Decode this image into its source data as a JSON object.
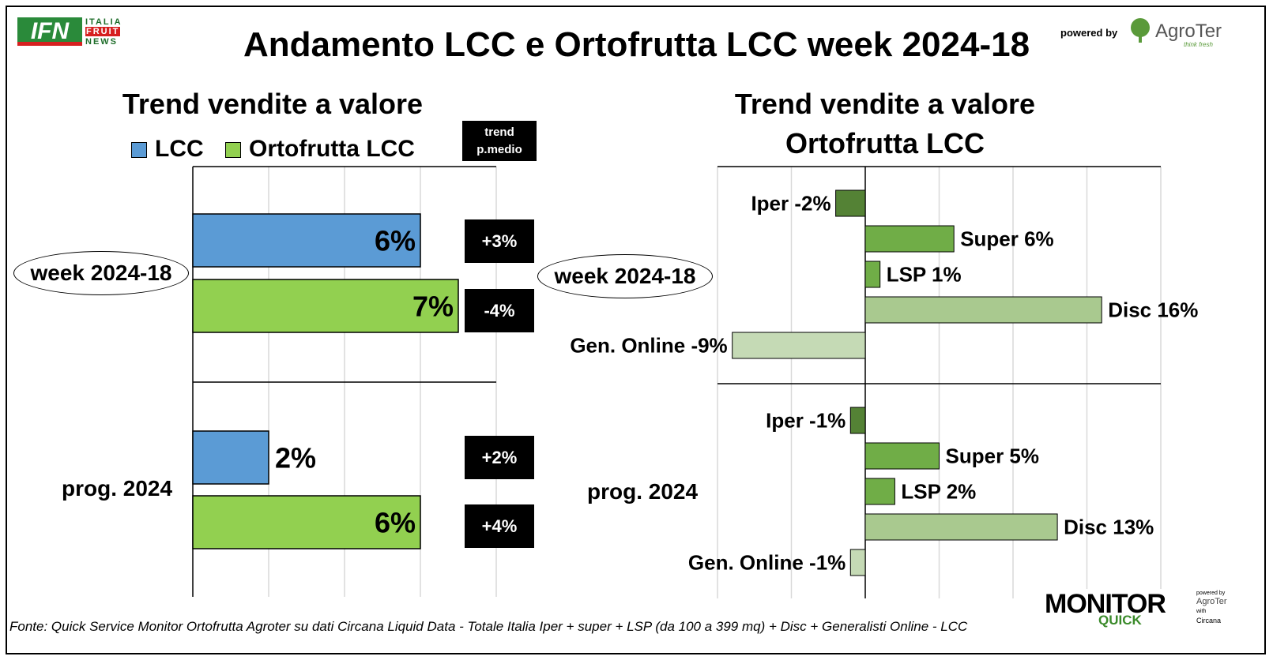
{
  "header": {
    "title": "Andamento LCC e Ortofrutta LCC week 2024-18",
    "logo_ifn": {
      "letters": "IFN",
      "line1": "ITALIA",
      "line2": "FRUIT",
      "line3": "NEWS"
    },
    "powered_by": "powered by",
    "agroter_name": "AgroTer",
    "agroter_tagline": "think fresh"
  },
  "left_chart": {
    "title": "Trend vendite a valore",
    "trend_header_line1": "trend",
    "trend_header_line2": "p.medio"
  },
  "right_chart": {
    "title_line1": "Trend vendite a valore",
    "title_line2": "Ortofrutta LCC"
  },
  "footer": "Fonte: Quick Service Monitor Ortofrutta Agroter su dati Circana Liquid Data - Totale Italia Iper + super + LSP (da 100 a 399 mq) + Disc + Generalisti Online - LCC",
  "monitor_logo": {
    "word1": "MONITOR",
    "word2": "QUICK",
    "powered": "powered by",
    "brand": "AgroTer",
    "with": "with",
    "partner": "Circana"
  },
  "chart_data": [
    {
      "type": "bar",
      "orientation": "horizontal",
      "title": "Trend vendite a valore",
      "categories": [
        "week 2024-18",
        "prog. 2024"
      ],
      "series": [
        {
          "name": "LCC",
          "values": [
            6,
            2
          ],
          "labels": [
            "6%",
            "2%"
          ],
          "color": "#5b9bd5"
        },
        {
          "name": "Ortofrutta LCC",
          "values": [
            7,
            6
          ],
          "labels": [
            "7%",
            "6%"
          ],
          "color": "#92d050"
        }
      ],
      "trend_p_medio": [
        [
          "+3%",
          "-4%"
        ],
        [
          "+2%",
          "+4%"
        ]
      ],
      "xlim": [
        0,
        8
      ],
      "grid": true
    },
    {
      "type": "bar",
      "orientation": "horizontal",
      "title": "Trend vendite a valore Ortofrutta LCC",
      "groups": [
        {
          "label": "week 2024-18",
          "bars": [
            {
              "name": "Iper",
              "value": -2,
              "label": "Iper -2%",
              "color": "#548235"
            },
            {
              "name": "Super",
              "value": 6,
              "label": "Super 6%",
              "color": "#70ad47"
            },
            {
              "name": "LSP",
              "value": 1,
              "label": "LSP 1%",
              "color": "#70ad47"
            },
            {
              "name": "Disc",
              "value": 16,
              "label": "Disc 16%",
              "color": "#a9c98f"
            },
            {
              "name": "Gen. Online",
              "value": -9,
              "label": "Gen. Online -9%",
              "color": "#c5dab5"
            }
          ]
        },
        {
          "label": "prog. 2024",
          "bars": [
            {
              "name": "Iper",
              "value": -1,
              "label": "Iper -1%",
              "color": "#548235"
            },
            {
              "name": "Super",
              "value": 5,
              "label": "Super 5%",
              "color": "#70ad47"
            },
            {
              "name": "LSP",
              "value": 2,
              "label": "LSP 2%",
              "color": "#70ad47"
            },
            {
              "name": "Disc",
              "value": 13,
              "label": "Disc 13%",
              "color": "#a9c98f"
            },
            {
              "name": "Gen. Online",
              "value": -1,
              "label": "Gen. Online -1%",
              "color": "#c5dab5"
            }
          ]
        }
      ],
      "xlim": [
        -10,
        20
      ],
      "grid": true
    }
  ]
}
